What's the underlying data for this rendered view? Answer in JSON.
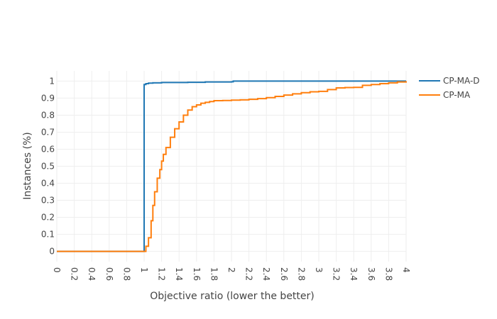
{
  "chart_data": {
    "type": "line",
    "xlabel": "Objective ratio (lower the better)",
    "ylabel": "Instances (%)",
    "xlim": [
      0,
      4
    ],
    "ylim": [
      -0.06,
      1.06
    ],
    "x_ticks": [
      0,
      0.2,
      0.4,
      0.6,
      0.8,
      1,
      1.2,
      1.4,
      1.6,
      1.8,
      2,
      2.2,
      2.4,
      2.6,
      2.8,
      3,
      3.2,
      3.4,
      3.6,
      3.8,
      4
    ],
    "x_tick_labels": [
      "0",
      "0.2",
      "0.4",
      "0.6",
      "0.8",
      "1",
      "1.2",
      "1.4",
      "1.6",
      "1.8",
      "2",
      "2.2",
      "2.4",
      "2.6",
      "2.8",
      "3",
      "3.2",
      "3.4",
      "3.6",
      "3.8",
      "4"
    ],
    "y_ticks": [
      0,
      0.1,
      0.2,
      0.3,
      0.4,
      0.5,
      0.6,
      0.7,
      0.8,
      0.9,
      1
    ],
    "y_tick_labels": [
      "0",
      "0.1",
      "0.2",
      "0.3",
      "0.4",
      "0.5",
      "0.6",
      "0.7",
      "0.8",
      "0.9",
      "1"
    ],
    "grid": true,
    "legend_position": "top-right",
    "series": [
      {
        "name": "CP-MA-D",
        "color": "#1f77b4",
        "x": [
          0,
          1.0,
          1.0,
          1.02,
          1.05,
          1.1,
          1.2,
          1.5,
          1.7,
          2.0,
          2.02,
          2.5,
          3.0,
          3.5,
          4.0
        ],
        "y": [
          0,
          0,
          0.98,
          0.985,
          0.988,
          0.99,
          0.992,
          0.993,
          0.995,
          0.996,
          1.0,
          1.0,
          1.0,
          1.0,
          1.0
        ]
      },
      {
        "name": "CP-MA",
        "color": "#ff7f0e",
        "x": [
          0,
          1.0,
          1.02,
          1.05,
          1.08,
          1.1,
          1.12,
          1.15,
          1.18,
          1.2,
          1.22,
          1.25,
          1.3,
          1.35,
          1.4,
          1.45,
          1.5,
          1.55,
          1.6,
          1.65,
          1.7,
          1.75,
          1.8,
          1.9,
          2.0,
          2.1,
          2.2,
          2.3,
          2.4,
          2.5,
          2.6,
          2.7,
          2.8,
          2.9,
          3.0,
          3.1,
          3.2,
          3.3,
          3.4,
          3.5,
          3.6,
          3.7,
          3.8,
          3.9,
          4.0
        ],
        "y": [
          0,
          0,
          0.03,
          0.08,
          0.18,
          0.27,
          0.35,
          0.43,
          0.48,
          0.53,
          0.57,
          0.61,
          0.67,
          0.72,
          0.76,
          0.8,
          0.83,
          0.85,
          0.86,
          0.87,
          0.875,
          0.88,
          0.885,
          0.886,
          0.888,
          0.89,
          0.893,
          0.897,
          0.903,
          0.91,
          0.918,
          0.925,
          0.932,
          0.937,
          0.94,
          0.95,
          0.96,
          0.962,
          0.963,
          0.975,
          0.98,
          0.985,
          0.99,
          0.995,
          1.0
        ]
      }
    ]
  }
}
